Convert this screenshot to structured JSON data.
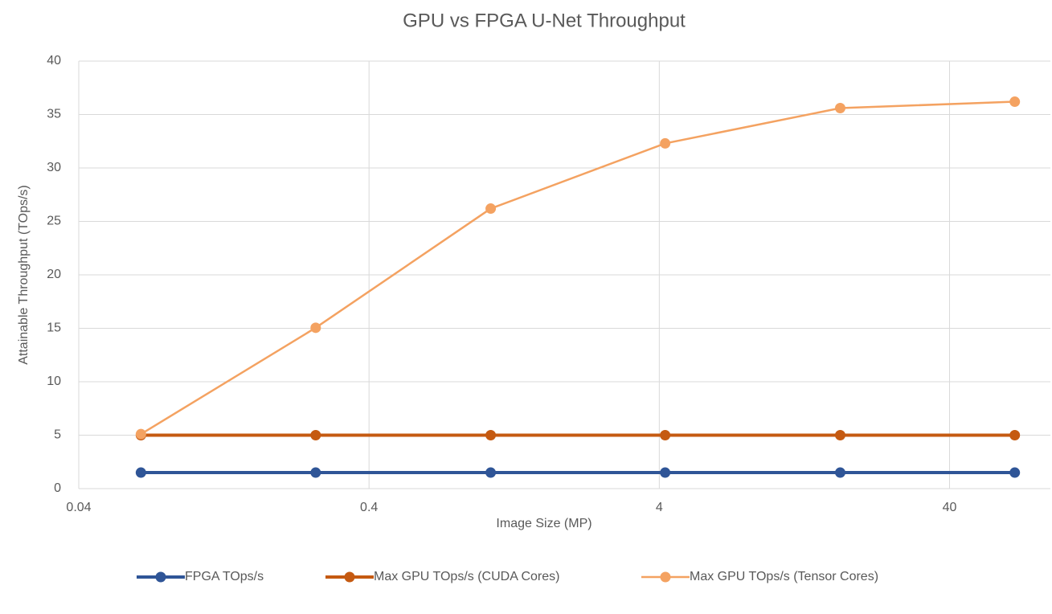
{
  "chart_data": {
    "type": "line",
    "title": "GPU vs FPGA U-Net Throughput",
    "x_label": "Image Size (MP)",
    "y_label": "Attainable Throughput (TOps/s)",
    "x": [
      0.0655,
      0.262,
      1.05,
      4.19,
      16.8,
      67.1
    ],
    "series": [
      {
        "name": "FPGA TOps/s",
        "color": "#2f5597",
        "values": [
          1.5,
          1.5,
          1.5,
          1.5,
          1.5,
          1.5
        ]
      },
      {
        "name": "Max GPU TOps/s (CUDA Cores)",
        "color": "#c55a11",
        "values": [
          5,
          5,
          5,
          5,
          5,
          5
        ]
      },
      {
        "name": "Max GPU TOps/s (Tensor Cores)",
        "color": "#f4a261",
        "values": [
          5.1,
          15.05,
          26.2,
          32.3,
          35.6,
          36.2
        ]
      }
    ],
    "x_log": true,
    "xlim": [
      0.04,
      89
    ],
    "xticks": [
      0.04,
      0.4,
      4,
      40
    ],
    "ylim": [
      0,
      40
    ],
    "yticks": [
      0,
      5,
      10,
      15,
      20,
      25,
      30,
      35,
      40
    ],
    "grid": true,
    "legend": "bottom"
  }
}
